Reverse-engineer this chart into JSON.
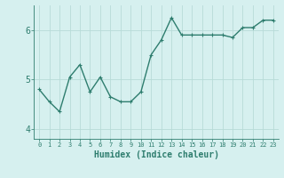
{
  "x": [
    0,
    1,
    2,
    3,
    4,
    5,
    6,
    7,
    8,
    9,
    10,
    11,
    12,
    13,
    14,
    15,
    16,
    17,
    18,
    19,
    20,
    21,
    22,
    23
  ],
  "y": [
    4.8,
    4.55,
    4.35,
    5.05,
    5.3,
    4.75,
    5.05,
    4.65,
    4.55,
    4.55,
    4.75,
    5.5,
    5.8,
    6.25,
    5.9,
    5.9,
    5.9,
    5.9,
    5.9,
    5.85,
    6.05,
    6.05,
    6.2,
    6.2
  ],
  "line_color": "#2e7d6e",
  "marker": ".",
  "marker_size": 4,
  "bg_color": "#d6f0ef",
  "grid_color": "#b8dbd8",
  "xlabel": "Humidex (Indice chaleur)",
  "ylabel": "",
  "ylim": [
    3.8,
    6.5
  ],
  "xlim": [
    -0.5,
    23.5
  ],
  "yticks": [
    4,
    5,
    6
  ],
  "xticks": [
    0,
    1,
    2,
    3,
    4,
    5,
    6,
    7,
    8,
    9,
    10,
    11,
    12,
    13,
    14,
    15,
    16,
    17,
    18,
    19,
    20,
    21,
    22,
    23
  ],
  "font_color": "#2e7d6e",
  "linewidth": 1.0,
  "xlabel_fontsize": 7,
  "ytick_fontsize": 7,
  "xtick_fontsize": 5
}
